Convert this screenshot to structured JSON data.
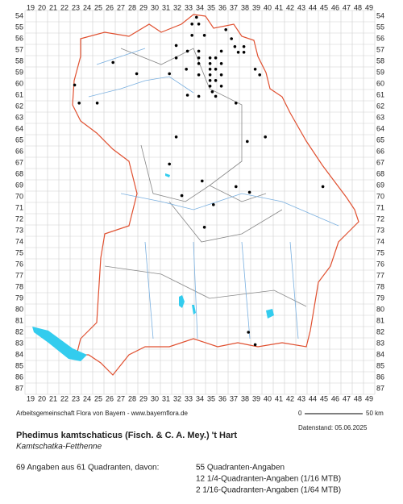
{
  "columns": [
    19,
    20,
    21,
    22,
    23,
    24,
    25,
    26,
    27,
    28,
    29,
    30,
    31,
    32,
    33,
    34,
    35,
    36,
    37,
    38,
    39,
    40,
    41,
    42,
    43,
    44,
    45,
    46,
    47,
    48,
    49
  ],
  "rows": [
    54,
    55,
    56,
    57,
    58,
    59,
    60,
    61,
    62,
    63,
    64,
    65,
    66,
    67,
    68,
    69,
    70,
    71,
    72,
    73,
    74,
    75,
    76,
    77,
    78,
    79,
    80,
    81,
    82,
    83,
    84,
    85,
    86,
    87
  ],
  "records": [
    [
      33.7,
      54.1
    ],
    [
      33.3,
      54.7
    ],
    [
      33.9,
      54.7
    ],
    [
      36.3,
      55.2
    ],
    [
      33.3,
      55.7
    ],
    [
      34.4,
      55.7
    ],
    [
      36.8,
      56
    ],
    [
      31.9,
      56.6
    ],
    [
      32.9,
      57.1
    ],
    [
      33.9,
      57.1
    ],
    [
      35.9,
      57.1
    ],
    [
      37.1,
      56.7
    ],
    [
      37.9,
      56.7
    ],
    [
      37.9,
      57.2
    ],
    [
      37.4,
      57.2
    ],
    [
      31.9,
      57.7
    ],
    [
      33.9,
      57.7
    ],
    [
      34.9,
      57.7
    ],
    [
      35.4,
      57.7
    ],
    [
      26.3,
      58.1
    ],
    [
      35.9,
      58.2
    ],
    [
      33.9,
      58.2
    ],
    [
      34.9,
      58.2
    ],
    [
      32.8,
      58.7
    ],
    [
      34.9,
      58.7
    ],
    [
      35.4,
      58.7
    ],
    [
      28.4,
      59.1
    ],
    [
      31.3,
      59.1
    ],
    [
      33.9,
      59.2
    ],
    [
      34.9,
      59.2
    ],
    [
      35.9,
      59.2
    ],
    [
      38.9,
      58.7
    ],
    [
      39.3,
      59.2
    ],
    [
      22.9,
      60.1
    ],
    [
      34.9,
      59.7
    ],
    [
      35.4,
      59.7
    ],
    [
      34.9,
      60.2
    ],
    [
      35.9,
      60.2
    ],
    [
      32.9,
      61
    ],
    [
      33.9,
      61.1
    ],
    [
      35.1,
      60.7
    ],
    [
      35.4,
      61.1
    ],
    [
      23.3,
      61.7
    ],
    [
      24.9,
      61.7
    ],
    [
      37.2,
      61.7
    ],
    [
      31.9,
      64.7
    ],
    [
      38.2,
      65.1
    ],
    [
      39.8,
      64.7
    ],
    [
      31.3,
      67.1
    ],
    [
      34.2,
      68.6
    ],
    [
      37.2,
      69.1
    ],
    [
      38.4,
      69.6
    ],
    [
      44.9,
      69.1
    ],
    [
      32.4,
      69.9
    ],
    [
      35.2,
      70.7
    ],
    [
      34.4,
      72.7
    ],
    [
      38.3,
      82
    ],
    [
      38.9,
      83.1
    ]
  ],
  "credit": "Arbeitsgemeinschaft Flora von Bayern - www.bayernflora.de",
  "scale": {
    "start": "0",
    "end": "50 km"
  },
  "date": "Datenstand: 05.06.2025",
  "title": "Phedimus kamtschaticus (Fisch. & C. A. Mey.) 't Hart",
  "subtitle": "Kamtschatka-Fetthenne",
  "summary": "69 Angaben aus 61 Quadranten, davon:",
  "details": [
    "55 Quadranten-Angaben",
    "12 1/4-Quadranten-Angaben (1/16 MTB)",
    "2 1/16-Quadranten-Angaben (1/64 MTB)"
  ]
}
